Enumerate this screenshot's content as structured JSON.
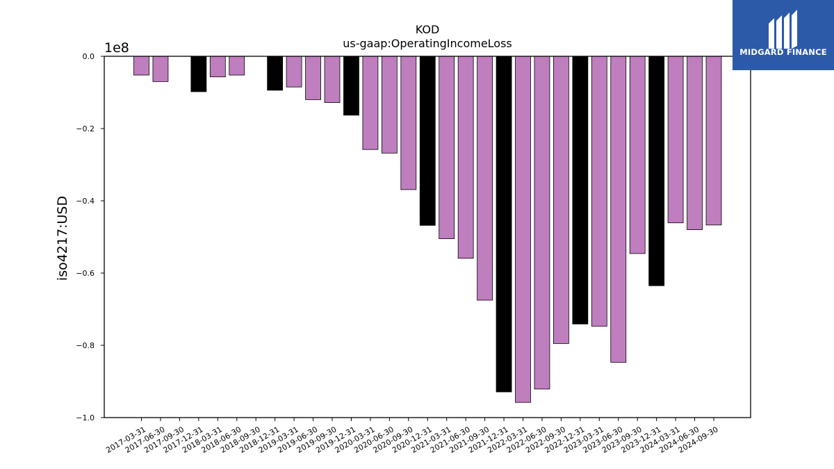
{
  "chart_data": {
    "type": "bar",
    "title": "KOD",
    "subtitle": "us-gaap:OperatingIncomeLoss",
    "ylabel": "iso4217:USD",
    "xlabel": "",
    "y_offset_label": "1e8",
    "ylim": [
      -100000000,
      0
    ],
    "yticks": [
      0,
      -20000000,
      -40000000,
      -60000000,
      -80000000,
      -100000000
    ],
    "ytick_labels": [
      "0.0",
      "−0.2",
      "−0.4",
      "−0.6",
      "−0.8",
      "−1.0"
    ],
    "categories": [
      "2017-03-31",
      "2017-06-30",
      "2017-09-30",
      "2017-12-31",
      "2018-03-31",
      "2018-06-30",
      "2018-09-30",
      "2018-12-31",
      "2019-03-31",
      "2019-06-30",
      "2019-09-30",
      "2019-12-31",
      "2020-03-31",
      "2020-06-30",
      "2020-09-30",
      "2020-12-31",
      "2021-03-31",
      "2021-06-30",
      "2021-09-30",
      "2021-12-31",
      "2022-03-31",
      "2022-06-30",
      "2022-09-30",
      "2022-12-31",
      "2023-03-31",
      "2023-06-30",
      "2023-09-30",
      "2023-12-31",
      "2024-03-31",
      "2024-06-30",
      "2024-09-30"
    ],
    "values": [
      -5200000,
      -7000000,
      null,
      -9800000,
      -5700000,
      -5200000,
      null,
      -9400000,
      -8500000,
      -12000000,
      -12800000,
      -16300000,
      -25800000,
      -26800000,
      -36900000,
      -46800000,
      -50500000,
      -55900000,
      -67500000,
      -92900000,
      -95800000,
      -92100000,
      -79500000,
      -74100000,
      -74700000,
      -84700000,
      -54600000,
      -63500000,
      -46100000,
      -48000000,
      -46700000
    ],
    "bar_types": [
      "quarter",
      "quarter",
      "none",
      "annual",
      "quarter",
      "quarter",
      "none",
      "annual",
      "quarter",
      "quarter",
      "quarter",
      "annual",
      "quarter",
      "quarter",
      "quarter",
      "annual",
      "quarter",
      "quarter",
      "quarter",
      "annual",
      "quarter",
      "quarter",
      "quarter",
      "annual",
      "quarter",
      "quarter",
      "quarter",
      "annual",
      "quarter",
      "quarter",
      "quarter"
    ],
    "colors": {
      "quarter": "#bf7fbf",
      "annual": "#000000",
      "edge": "#000000"
    },
    "grid": false,
    "legend": "none"
  },
  "logo": {
    "text": "MIDGARD FINANCE",
    "background": "#2d5aa8"
  }
}
